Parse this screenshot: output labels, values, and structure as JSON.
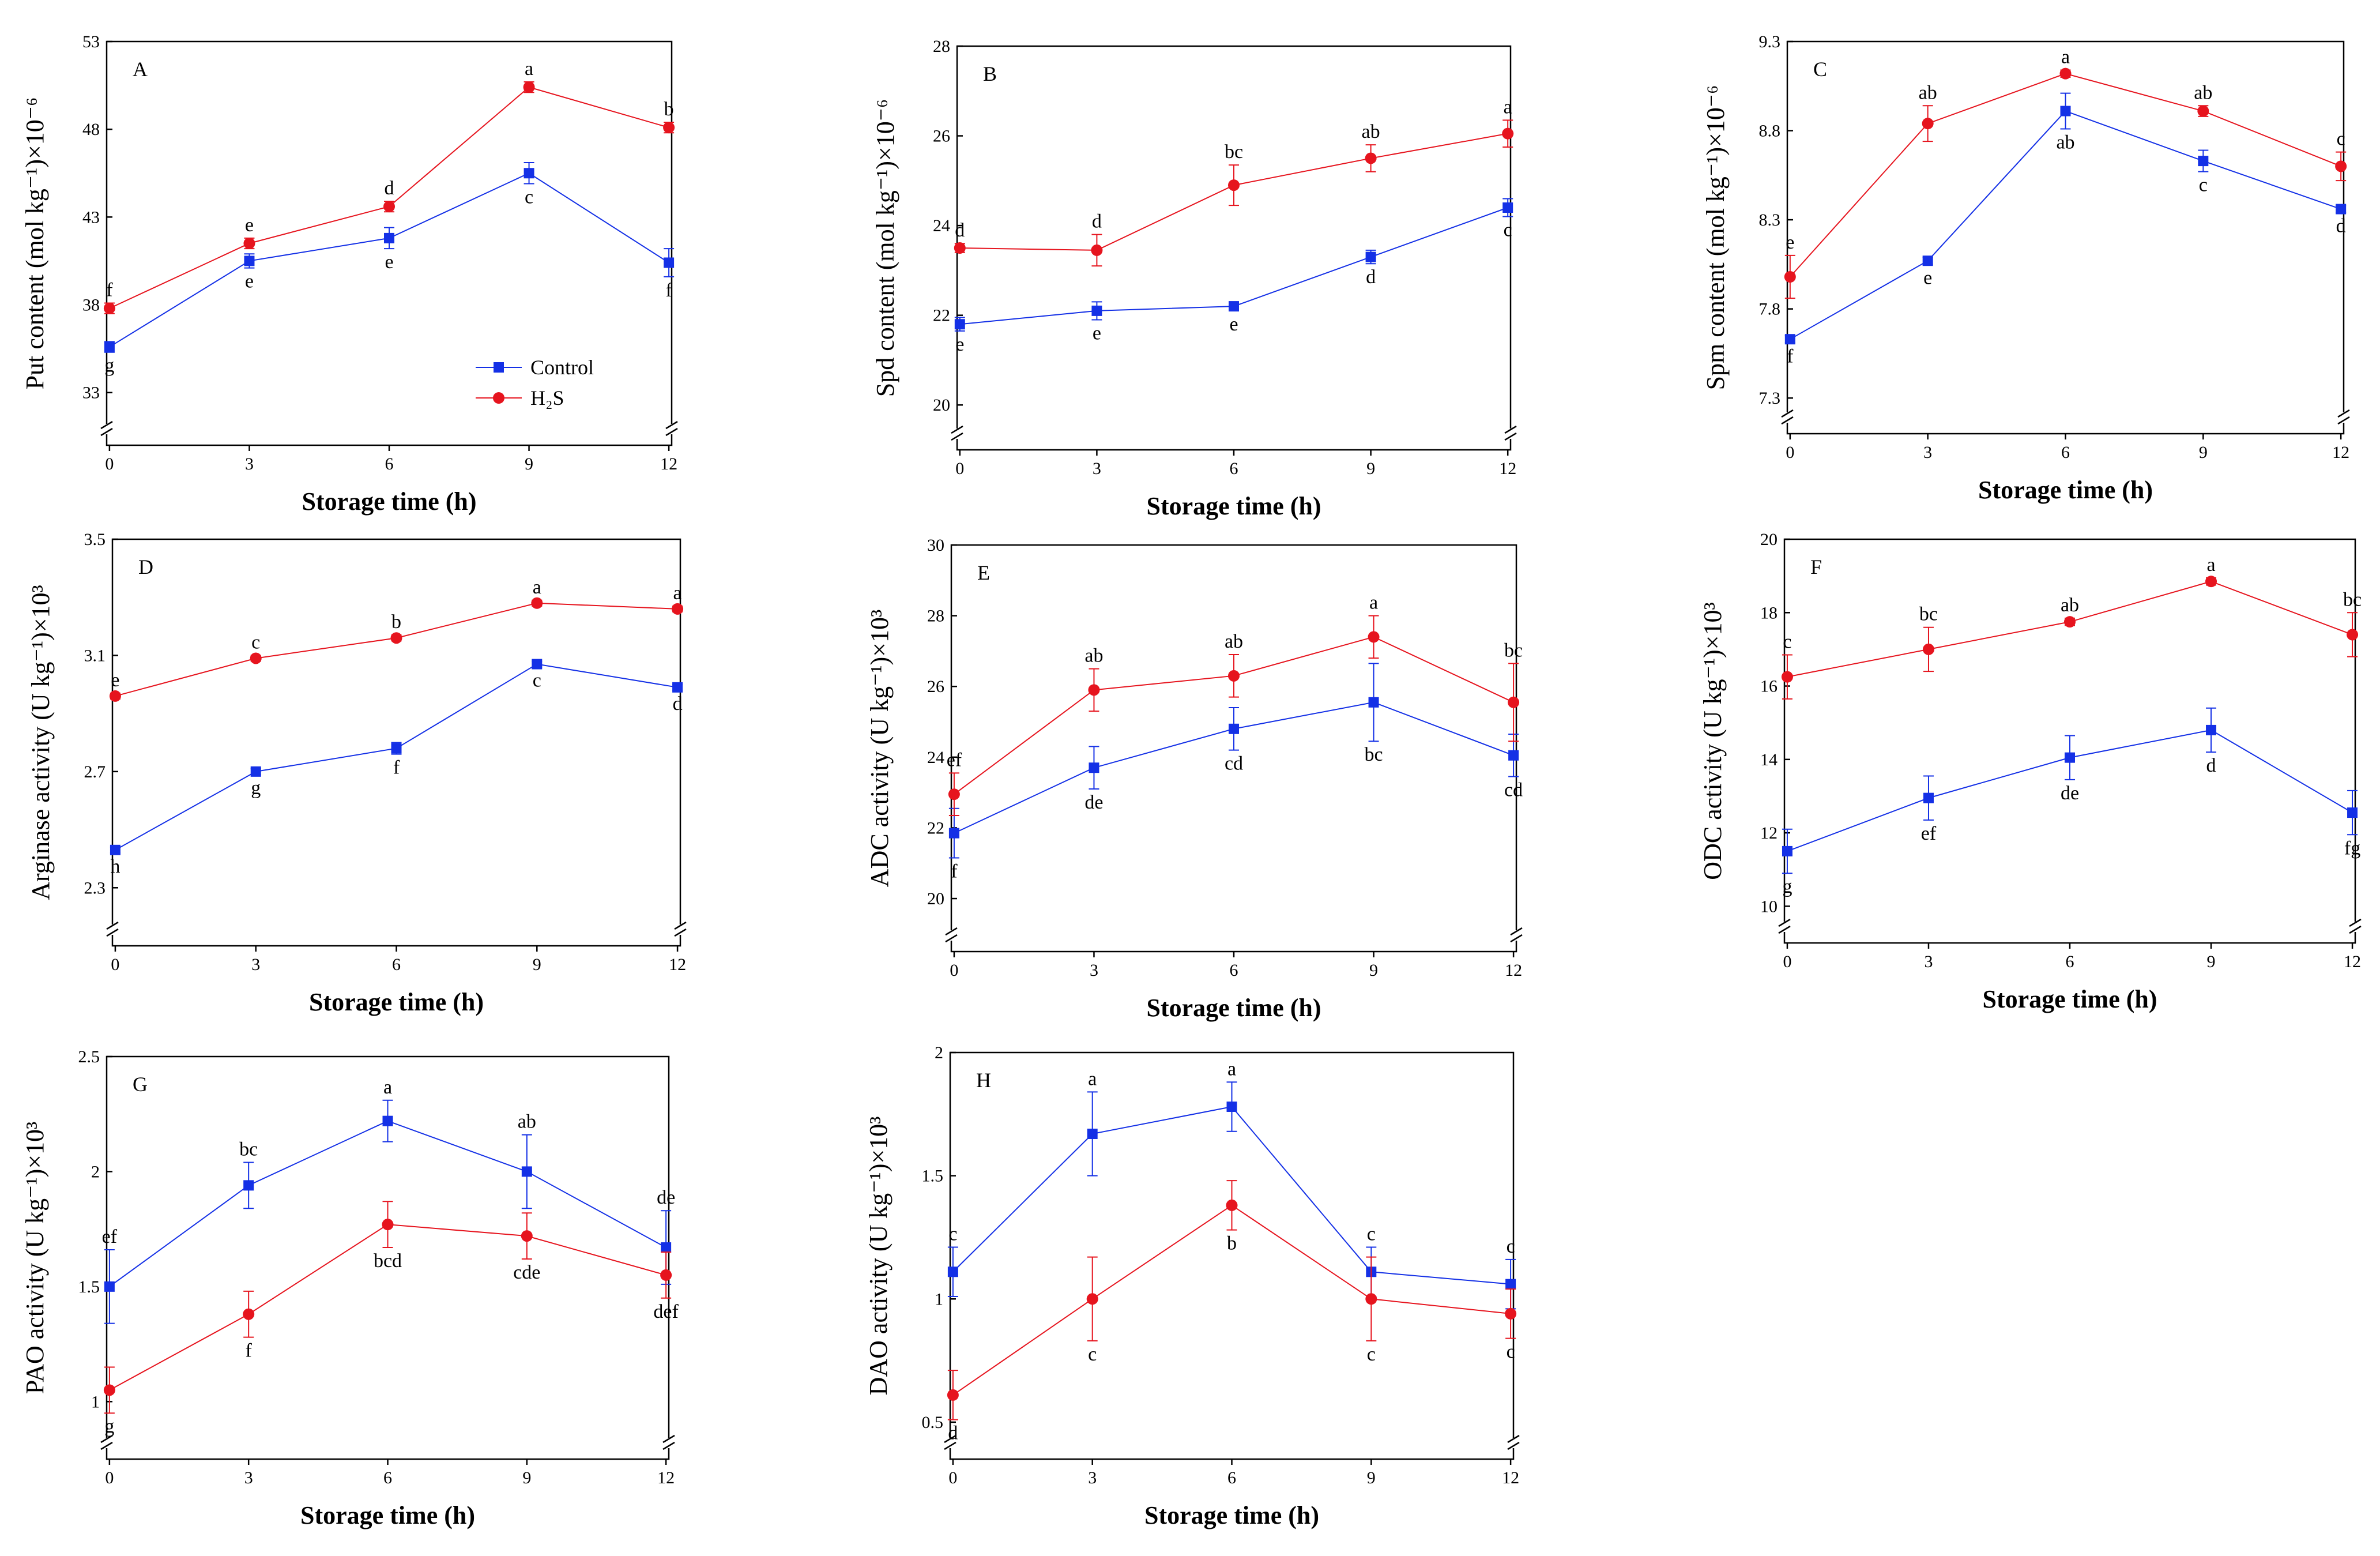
{
  "colors": {
    "control": "#1430e6",
    "h2s": "#e6141e",
    "axis": "#000000"
  },
  "legend": {
    "control_label": "Control",
    "h2s_label": "H₂S"
  },
  "chart_data": [
    {
      "type": "line",
      "panel": "A",
      "legend": true,
      "xlabel": "Storage time (h)",
      "ylabel": "Put content (mol kg⁻¹)×10⁻⁶",
      "x": [
        0,
        3,
        6,
        9,
        12
      ],
      "xticks": [
        "0",
        "3",
        "6",
        "9",
        "12"
      ],
      "ylim": [
        30,
        53
      ],
      "yticks": [
        33,
        38,
        43,
        48,
        53
      ],
      "series": [
        {
          "name": "Control",
          "color": "#1430e6",
          "marker": "square",
          "values": [
            35.6,
            40.5,
            41.8,
            45.5,
            40.4
          ],
          "errors": [
            0.3,
            0.4,
            0.6,
            0.6,
            0.8
          ],
          "labels": [
            "g",
            "e",
            "e",
            "c",
            "f"
          ],
          "label_pos": [
            "below",
            "below",
            "below",
            "below",
            "below"
          ]
        },
        {
          "name": "H₂S",
          "color": "#e6141e",
          "marker": "circle",
          "values": [
            37.8,
            41.5,
            43.6,
            50.4,
            48.1
          ],
          "errors": [
            0.3,
            0.3,
            0.3,
            0.3,
            0.3
          ],
          "labels": [
            "f",
            "e",
            "d",
            "a",
            "b"
          ],
          "label_pos": [
            "above",
            "above",
            "above",
            "above",
            "above"
          ]
        }
      ]
    },
    {
      "type": "line",
      "panel": "B",
      "legend": false,
      "xlabel": "Storage time (h)",
      "ylabel": "Spd content (mol kg⁻¹)×10⁻⁶",
      "x": [
        0,
        3,
        6,
        9,
        12
      ],
      "xticks": [
        "0",
        "3",
        "6",
        "9",
        "12"
      ],
      "ylim": [
        19,
        28
      ],
      "yticks": [
        20,
        22,
        24,
        26,
        28
      ],
      "series": [
        {
          "name": "Control",
          "color": "#1430e6",
          "marker": "square",
          "values": [
            21.8,
            22.1,
            22.2,
            23.3,
            24.4
          ],
          "errors": [
            0.15,
            0.2,
            0.1,
            0.15,
            0.2
          ],
          "labels": [
            "e",
            "e",
            "e",
            "d",
            "c"
          ],
          "label_pos": [
            "below",
            "below",
            "below",
            "below",
            "below"
          ]
        },
        {
          "name": "H₂S",
          "color": "#e6141e",
          "marker": "circle",
          "values": [
            23.5,
            23.45,
            24.9,
            25.5,
            26.05
          ],
          "errors": [
            0.1,
            0.35,
            0.45,
            0.3,
            0.3
          ],
          "labels": [
            "d",
            "d",
            "bc",
            "ab",
            "a"
          ],
          "label_pos": [
            "above",
            "above",
            "above",
            "above",
            "above"
          ]
        }
      ]
    },
    {
      "type": "line",
      "panel": "C",
      "legend": false,
      "xlabel": "Storage time (h)",
      "ylabel": "Spm content (mol kg⁻¹)×10⁻⁶",
      "x": [
        0,
        3,
        6,
        9,
        12
      ],
      "xticks": [
        "0",
        "3",
        "6",
        "9",
        "12"
      ],
      "ylim": [
        7.1,
        9.3
      ],
      "yticks": [
        7.3,
        7.8,
        8.3,
        8.8,
        9.3
      ],
      "series": [
        {
          "name": "Control",
          "color": "#1430e6",
          "marker": "square",
          "values": [
            7.63,
            8.07,
            8.91,
            8.63,
            8.36
          ],
          "errors": [
            0.02,
            0.02,
            0.1,
            0.06,
            0.02
          ],
          "labels": [
            "f",
            "e",
            "ab",
            "c",
            "d"
          ],
          "label_pos": [
            "below",
            "below",
            "below",
            "below",
            "below"
          ]
        },
        {
          "name": "H₂S",
          "color": "#e6141e",
          "marker": "circle",
          "values": [
            7.98,
            8.84,
            9.12,
            8.91,
            8.6
          ],
          "errors": [
            0.12,
            0.1,
            0.02,
            0.03,
            0.08
          ],
          "labels": [
            "e",
            "ab",
            "a",
            "ab",
            "c"
          ],
          "label_pos": [
            "above",
            "above",
            "above",
            "above",
            "above"
          ]
        }
      ]
    },
    {
      "type": "line",
      "panel": "D",
      "legend": false,
      "xlabel": "Storage time (h)",
      "ylabel": "Arginase activity (U kg⁻¹)×10³",
      "x": [
        0,
        3,
        6,
        9,
        12
      ],
      "xticks": [
        "0",
        "3",
        "6",
        "9",
        "12"
      ],
      "ylim": [
        2.1,
        3.5
      ],
      "yticks": [
        2.3,
        2.7,
        3.1,
        3.5
      ],
      "series": [
        {
          "name": "Control",
          "color": "#1430e6",
          "marker": "square",
          "values": [
            2.43,
            2.7,
            2.78,
            3.07,
            2.99
          ],
          "errors": [
            0.01,
            0.01,
            0.02,
            0.01,
            0.01
          ],
          "labels": [
            "h",
            "g",
            "f",
            "c",
            "d"
          ],
          "label_pos": [
            "below",
            "below",
            "below",
            "below",
            "below"
          ]
        },
        {
          "name": "H₂S",
          "color": "#e6141e",
          "marker": "circle",
          "values": [
            2.96,
            3.09,
            3.16,
            3.28,
            3.26
          ],
          "errors": [
            0.01,
            0.01,
            0.01,
            0.01,
            0.01
          ],
          "labels": [
            "e",
            "c",
            "b",
            "a",
            "a"
          ],
          "label_pos": [
            "above",
            "above",
            "above",
            "above",
            "above"
          ]
        }
      ]
    },
    {
      "type": "line",
      "panel": "E",
      "legend": false,
      "xlabel": "Storage time (h)",
      "ylabel": "ADC activity (U kg⁻¹)×10³",
      "x": [
        0,
        3,
        6,
        9,
        12
      ],
      "xticks": [
        "0",
        "3",
        "6",
        "9",
        "12"
      ],
      "ylim": [
        18.5,
        30
      ],
      "yticks": [
        20,
        22,
        24,
        26,
        28,
        30
      ],
      "series": [
        {
          "name": "Control",
          "color": "#1430e6",
          "marker": "square",
          "values": [
            21.85,
            23.7,
            24.8,
            25.55,
            24.05
          ],
          "errors": [
            0.7,
            0.6,
            0.6,
            1.1,
            0.6
          ],
          "labels": [
            "f",
            "de",
            "cd",
            "bc",
            "cd"
          ],
          "label_pos": [
            "below",
            "below",
            "below",
            "below",
            "below"
          ]
        },
        {
          "name": "H₂S",
          "color": "#e6141e",
          "marker": "circle",
          "values": [
            22.95,
            25.9,
            26.3,
            27.4,
            25.55
          ],
          "errors": [
            0.6,
            0.6,
            0.6,
            0.6,
            1.1
          ],
          "labels": [
            "ef",
            "ab",
            "ab",
            "a",
            "bc"
          ],
          "label_pos": [
            "above",
            "above",
            "above",
            "above",
            "above"
          ]
        }
      ]
    },
    {
      "type": "line",
      "panel": "F",
      "legend": false,
      "xlabel": "Storage time (h)",
      "ylabel": "ODC activity (U kg⁻¹)×10³",
      "x": [
        0,
        3,
        6,
        9,
        12
      ],
      "xticks": [
        "0",
        "3",
        "6",
        "9",
        "12"
      ],
      "ylim": [
        9,
        20
      ],
      "yticks": [
        10,
        12,
        14,
        16,
        18,
        20
      ],
      "series": [
        {
          "name": "Control",
          "color": "#1430e6",
          "marker": "square",
          "values": [
            11.5,
            12.95,
            14.05,
            14.8,
            12.55
          ],
          "errors": [
            0.6,
            0.6,
            0.6,
            0.6,
            0.6
          ],
          "labels": [
            "g",
            "ef",
            "de",
            "d",
            "fg"
          ],
          "label_pos": [
            "below",
            "below",
            "below",
            "below",
            "below"
          ]
        },
        {
          "name": "H₂S",
          "color": "#e6141e",
          "marker": "circle",
          "values": [
            16.25,
            17.0,
            17.75,
            18.85,
            17.4
          ],
          "errors": [
            0.6,
            0.6,
            0.1,
            0.1,
            0.6
          ],
          "labels": [
            "c",
            "bc",
            "ab",
            "a",
            "bc"
          ],
          "label_pos": [
            "above",
            "above",
            "above",
            "above",
            "above"
          ]
        }
      ]
    },
    {
      "type": "line",
      "panel": "G",
      "legend": false,
      "xlabel": "Storage time (h)",
      "ylabel": "PAO activity (U kg⁻¹)×10³",
      "x": [
        0,
        3,
        6,
        9,
        12
      ],
      "xticks": [
        "0",
        "3",
        "6",
        "9",
        "12"
      ],
      "ylim": [
        0.75,
        2.5
      ],
      "yticks": [
        1.0,
        1.5,
        2.0,
        2.5
      ],
      "series": [
        {
          "name": "Control",
          "color": "#1430e6",
          "marker": "square",
          "values": [
            1.5,
            1.94,
            2.22,
            2.0,
            1.67
          ],
          "errors": [
            0.16,
            0.1,
            0.09,
            0.16,
            0.16
          ],
          "labels": [
            "ef",
            "bc",
            "a",
            "ab",
            "de"
          ],
          "label_pos": [
            "above",
            "above",
            "above",
            "above",
            "above"
          ]
        },
        {
          "name": "H₂S",
          "color": "#e6141e",
          "marker": "circle",
          "values": [
            1.05,
            1.38,
            1.77,
            1.72,
            1.55
          ],
          "errors": [
            0.1,
            0.1,
            0.1,
            0.1,
            0.1
          ],
          "labels": [
            "g",
            "f",
            "bcd",
            "cde",
            "def"
          ],
          "label_pos": [
            "below",
            "below",
            "below",
            "below",
            "below"
          ]
        }
      ]
    },
    {
      "type": "line",
      "panel": "H",
      "legend": false,
      "xlabel": "Storage time (h)",
      "ylabel": "DAO activity (U kg⁻¹)×10³",
      "x": [
        0,
        3,
        6,
        9,
        12
      ],
      "xticks": [
        "0",
        "3",
        "6",
        "9",
        "12"
      ],
      "ylim": [
        0.35,
        2.0
      ],
      "yticks": [
        0.5,
        1.0,
        1.5,
        2.0
      ],
      "series": [
        {
          "name": "Control",
          "color": "#1430e6",
          "marker": "square",
          "values": [
            1.11,
            1.67,
            1.78,
            1.11,
            1.06
          ],
          "errors": [
            0.1,
            0.17,
            0.1,
            0.1,
            0.1
          ],
          "labels": [
            "c",
            "a",
            "a",
            "c",
            "c"
          ],
          "label_pos": [
            "above",
            "above",
            "above",
            "above",
            "above"
          ]
        },
        {
          "name": "H₂S",
          "color": "#e6141e",
          "marker": "circle",
          "values": [
            0.61,
            1.0,
            1.38,
            1.0,
            0.94
          ],
          "errors": [
            0.1,
            0.17,
            0.1,
            0.17,
            0.1
          ],
          "labels": [
            "d",
            "c",
            "b",
            "c",
            "c"
          ],
          "label_pos": [
            "below",
            "below",
            "below",
            "below",
            "below"
          ]
        }
      ]
    }
  ]
}
